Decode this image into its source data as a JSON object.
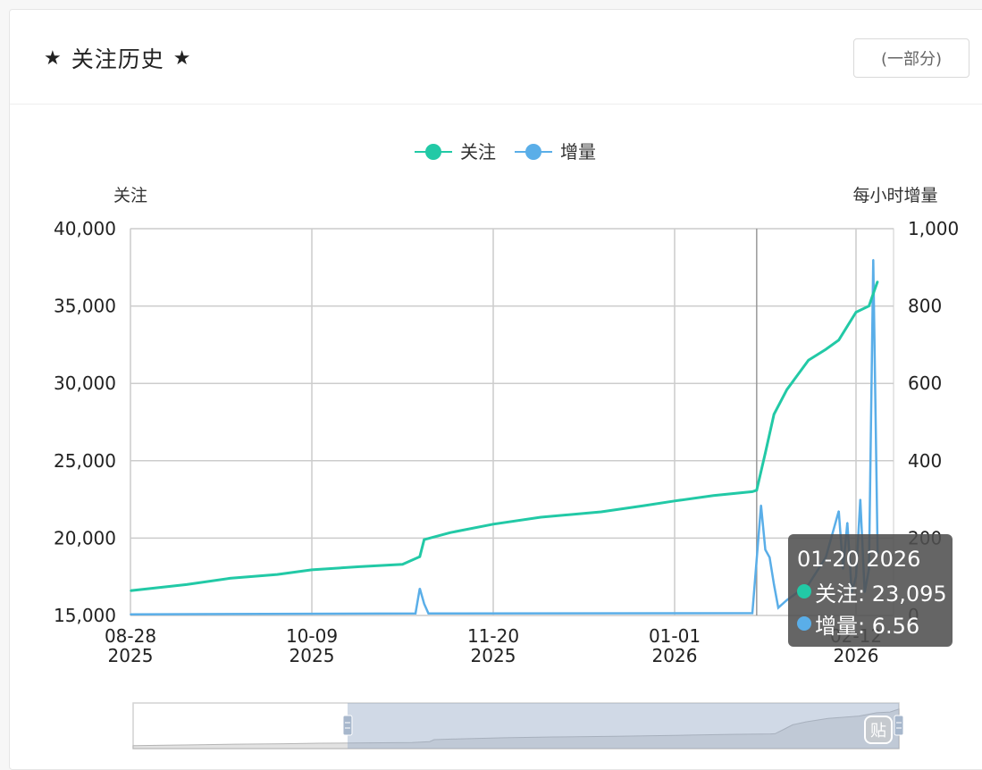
{
  "header": {
    "title": "关注历史",
    "star_left": "★",
    "star_right": "★",
    "part_button": "(一部分)"
  },
  "colors": {
    "follow": "#22c9a6",
    "increment": "#5aaee8",
    "grid": "#cccccc",
    "tooltip_bg": "#555555"
  },
  "chart_data": {
    "type": "line",
    "legend": [
      {
        "name": "关注",
        "color": "#22c9a6"
      },
      {
        "name": "增量",
        "color": "#5aaee8"
      }
    ],
    "legend_position": "top-center",
    "ylabel_left": "关注",
    "ylabel_right": "每小时增量",
    "ylim_left": [
      15000,
      40000
    ],
    "ylim_right": [
      0,
      1000
    ],
    "y_ticks_left": [
      "40,000",
      "35,000",
      "30,000",
      "25,000",
      "20,000",
      "15,000"
    ],
    "y_ticks_right": [
      "1,000",
      "800",
      "600",
      "400",
      "200",
      "0"
    ],
    "x_ticks": [
      {
        "date": "08-28",
        "year": "2025"
      },
      {
        "date": "10-09",
        "year": "2025"
      },
      {
        "date": "11-20",
        "year": "2025"
      },
      {
        "date": "01-01",
        "year": "2026"
      },
      {
        "date": "02-12",
        "year": "2026"
      }
    ],
    "grid": true,
    "series": [
      {
        "name": "关注",
        "x": [
          "2025-08-28",
          "2025-09-10",
          "2025-09-20",
          "2025-10-01",
          "2025-10-09",
          "2025-10-20",
          "2025-10-30",
          "2025-11-03",
          "2025-11-04",
          "2025-11-10",
          "2025-11-20",
          "2025-12-01",
          "2025-12-15",
          "2025-12-25",
          "2026-01-01",
          "2026-01-10",
          "2026-01-19",
          "2026-01-20",
          "2026-01-22",
          "2026-01-24",
          "2026-01-27",
          "2026-02-01",
          "2026-02-05",
          "2026-02-08",
          "2026-02-12",
          "2026-02-15",
          "2026-02-16",
          "2026-02-17"
        ],
        "values": [
          16600,
          17000,
          17400,
          17650,
          17950,
          18150,
          18300,
          18800,
          19900,
          20350,
          20900,
          21350,
          21700,
          22100,
          22400,
          22750,
          23000,
          23095,
          25500,
          28000,
          29600,
          31500,
          32200,
          32800,
          34600,
          35000,
          35800,
          36600
        ]
      },
      {
        "name": "增量",
        "x": [
          "2025-08-28",
          "2025-11-02",
          "2025-11-03",
          "2025-11-04",
          "2025-11-05",
          "2026-01-19",
          "2026-01-21",
          "2026-01-22",
          "2026-01-23",
          "2026-01-24",
          "2026-01-25",
          "2026-01-27",
          "2026-02-01",
          "2026-02-05",
          "2026-02-08",
          "2026-02-09",
          "2026-02-10",
          "2026-02-11",
          "2026-02-12",
          "2026-02-13",
          "2026-02-14",
          "2026-02-15",
          "2026-02-16",
          "2026-02-17"
        ],
        "values": [
          3,
          5,
          70,
          30,
          5,
          6,
          285,
          170,
          150,
          80,
          20,
          40,
          80,
          150,
          270,
          120,
          240,
          60,
          100,
          300,
          60,
          120,
          920,
          160
        ]
      }
    ]
  },
  "tooltip": {
    "date": "01-20 2026",
    "follow_label": "关注: 23,095",
    "increment_label": "增量: 6.56"
  },
  "zoom": {
    "handle_start": 0.28,
    "handle_end": 1.0,
    "icon_label": "贴"
  }
}
